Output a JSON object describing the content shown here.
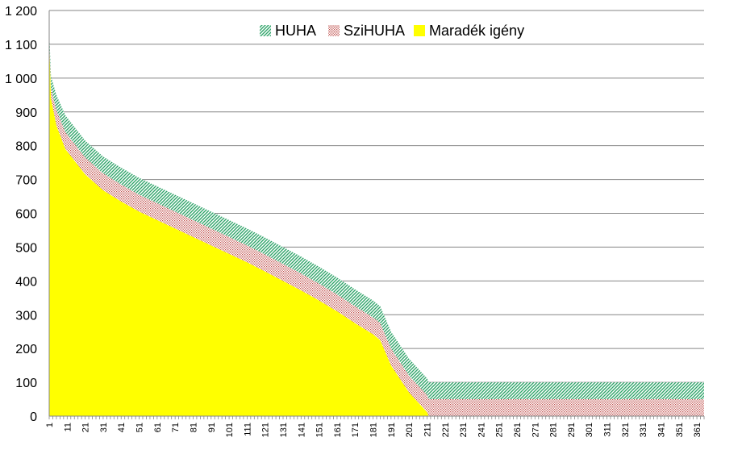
{
  "chart_data": {
    "type": "area",
    "stacked": true,
    "x": {
      "start": 1,
      "end": 365,
      "tick_labels": [
        "1",
        "11",
        "21",
        "31",
        "41",
        "51",
        "61",
        "71",
        "81",
        "91",
        "101",
        "111",
        "121",
        "131",
        "141",
        "151",
        "161",
        "171",
        "181",
        "191",
        "201",
        "211",
        "221",
        "231",
        "241",
        "251",
        "261",
        "271",
        "281",
        "291",
        "301",
        "311",
        "321",
        "331",
        "341",
        "351",
        "361"
      ]
    },
    "y": {
      "min": 0,
      "max": 1200,
      "tick_labels": [
        "0",
        "100",
        "200",
        "300",
        "400",
        "500",
        "600",
        "700",
        "800",
        "900",
        "1 000",
        "1 100",
        "1 200"
      ]
    },
    "grid": "horizontal",
    "legend_position": "top",
    "day_points": [
      1,
      2,
      5,
      10,
      21,
      31,
      41,
      51,
      61,
      71,
      81,
      91,
      101,
      111,
      121,
      131,
      141,
      151,
      161,
      171,
      181,
      185,
      191,
      201,
      211,
      212,
      213,
      365
    ],
    "series": [
      {
        "name": "Maradék igény",
        "color": "#ffff00",
        "pattern": "solid",
        "values": [
          1120,
          940,
          860,
          790,
          715,
          668,
          635,
          605,
          580,
          555,
          530,
          505,
          480,
          455,
          428,
          400,
          372,
          342,
          310,
          275,
          242,
          225,
          150,
          70,
          12,
          0,
          0,
          0
        ]
      },
      {
        "name": "SziHUHA",
        "color": "#c0504d",
        "pattern": "dotted",
        "values": [
          5,
          30,
          45,
          50,
          50,
          50,
          50,
          50,
          50,
          50,
          50,
          50,
          50,
          50,
          50,
          50,
          50,
          50,
          50,
          50,
          50,
          50,
          50,
          50,
          50,
          50,
          50,
          50
        ]
      },
      {
        "name": "HUHA",
        "color": "#31a56b",
        "pattern": "diagonal",
        "values": [
          15,
          35,
          45,
          50,
          50,
          50,
          50,
          50,
          50,
          50,
          50,
          50,
          50,
          50,
          50,
          50,
          50,
          50,
          50,
          50,
          50,
          50,
          50,
          50,
          50,
          50,
          50,
          50
        ]
      }
    ]
  }
}
